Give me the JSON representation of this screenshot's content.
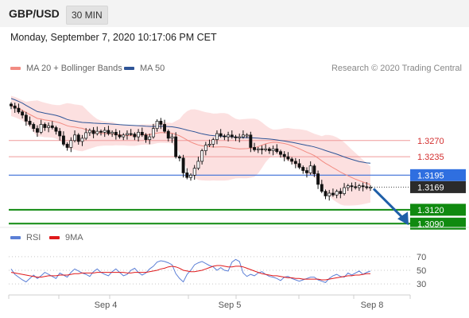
{
  "header": {
    "pair": "GBP/USD",
    "timeframe": "30 MIN"
  },
  "timestamp": "Monday, September 7, 2020 10:17:06 PM CET",
  "legend": {
    "ma20": {
      "label": "MA 20 + Bollinger Bands",
      "color": "#f28b82"
    },
    "ma50": {
      "label": "MA 50",
      "color": "#2f5597"
    },
    "rsi": {
      "label": "RSI",
      "color": "#5b7fd6"
    },
    "ma9": {
      "label": "9MA",
      "color": "#e0191b"
    }
  },
  "credit": "Research © 2020 Trading Central",
  "chart_data": [
    {
      "type": "candlestick",
      "x_ticks": [
        "Sep 4",
        "Sep 5",
        "Sep 8"
      ],
      "levels": [
        {
          "name": "resistance-2",
          "value": 1.327,
          "label": "1.3270",
          "style": "red-thin"
        },
        {
          "name": "resistance-1",
          "value": 1.3235,
          "label": "1.3235",
          "style": "red-thin"
        },
        {
          "name": "pivot",
          "value": 1.3195,
          "label": "1.3195",
          "style": "blue"
        },
        {
          "name": "last-price",
          "value": 1.3169,
          "label": "1.3169",
          "style": "dark-dotted"
        },
        {
          "name": "support-1",
          "value": 1.312,
          "label": "1.3120",
          "style": "green"
        },
        {
          "name": "support-2",
          "value": 1.309,
          "label": "1.3090",
          "style": "green"
        }
      ],
      "ylim": [
        1.3075,
        1.3385
      ],
      "last_price": 1.3169,
      "forecast_direction": "down",
      "closes": [
        1.3345,
        1.334,
        1.3332,
        1.3325,
        1.3312,
        1.3305,
        1.3296,
        1.3288,
        1.3305,
        1.3298,
        1.3302,
        1.3298,
        1.329,
        1.328,
        1.3262,
        1.3255,
        1.327,
        1.3282,
        1.3268,
        1.3275,
        1.3287,
        1.3292,
        1.3285,
        1.329,
        1.3288,
        1.3292,
        1.3285,
        1.3288,
        1.3282,
        1.3278,
        1.3282,
        1.3285,
        1.3284,
        1.3278,
        1.3288,
        1.3282,
        1.3272,
        1.3278,
        1.3296,
        1.3312,
        1.3305,
        1.329,
        1.3275,
        1.3278,
        1.3235,
        1.3232,
        1.32,
        1.319,
        1.3195,
        1.321,
        1.3225,
        1.3248,
        1.326,
        1.3262,
        1.3272,
        1.3285,
        1.328,
        1.3278,
        1.3282,
        1.3278,
        1.3276,
        1.3278,
        1.3282,
        1.3282,
        1.3255,
        1.325,
        1.3252,
        1.325,
        1.3252,
        1.3248,
        1.3252,
        1.3246,
        1.324,
        1.3235,
        1.323,
        1.3225,
        1.322,
        1.3212,
        1.3205,
        1.32,
        1.3215,
        1.3198,
        1.3175,
        1.316,
        1.315,
        1.3156,
        1.3152,
        1.316,
        1.3155,
        1.3168,
        1.3172,
        1.317,
        1.3168,
        1.3172,
        1.317,
        1.3168,
        1.3169
      ]
    },
    {
      "type": "line",
      "name": "RSI panel",
      "y_ticks": [
        70,
        50,
        30
      ],
      "ylim": [
        15,
        85
      ],
      "series": [
        {
          "name": "RSI",
          "color": "#5b7fd6",
          "values": [
            52,
            44,
            40,
            36,
            33,
            38,
            43,
            38,
            42,
            47,
            44,
            41,
            38,
            46,
            43,
            40,
            47,
            52,
            49,
            46,
            44,
            41,
            48,
            52,
            47,
            44,
            42,
            48,
            52,
            47,
            42,
            44,
            50,
            53,
            47,
            43,
            46,
            52,
            56,
            62,
            64,
            63,
            61,
            58,
            45,
            38,
            33,
            44,
            50,
            58,
            61,
            63,
            60,
            57,
            55,
            50,
            54,
            50,
            49,
            62,
            66,
            63,
            46,
            41,
            44,
            42,
            46,
            48,
            44,
            41,
            40,
            38,
            35,
            40,
            41,
            38,
            36,
            34,
            36,
            38,
            40,
            40,
            36,
            34,
            32,
            38,
            42,
            44,
            41,
            40,
            46,
            43,
            46,
            49,
            44,
            47,
            49
          ]
        },
        {
          "name": "9MA",
          "color": "#e0191b",
          "values": [
            47,
            46,
            45,
            44,
            43,
            42,
            41,
            40,
            40,
            41,
            42,
            42,
            42,
            43,
            43,
            43,
            44,
            45,
            45,
            46,
            46,
            46,
            46,
            47,
            47,
            47,
            47,
            47,
            47,
            47,
            47,
            46,
            46,
            47,
            47,
            47,
            47,
            48,
            49,
            50,
            52,
            53,
            55,
            56,
            55,
            53,
            50,
            49,
            48,
            48,
            49,
            50,
            52,
            54,
            56,
            57,
            57,
            56,
            55,
            55,
            56,
            56,
            55,
            53,
            51,
            49,
            47,
            45,
            44,
            43,
            42,
            42,
            41,
            40,
            39,
            39,
            38,
            38,
            37,
            37,
            37,
            37,
            37,
            36,
            36,
            37,
            38,
            39,
            40,
            41,
            42,
            42,
            43,
            43,
            44,
            45,
            45
          ]
        }
      ]
    }
  ]
}
